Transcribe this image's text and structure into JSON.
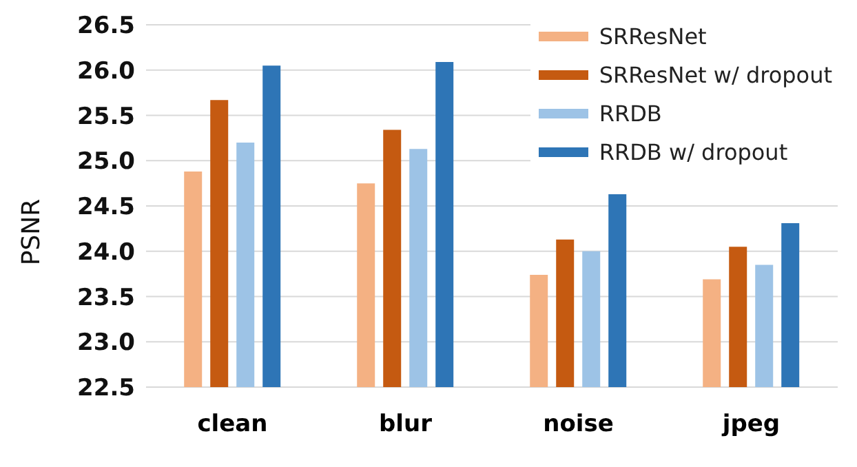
{
  "chart_data": {
    "type": "bar",
    "ylabel": "PSNR",
    "categories": [
      "clean",
      "blur",
      "noise",
      "jpeg"
    ],
    "series": [
      {
        "name": "SRResNet",
        "color": "#f4b183",
        "values": [
          24.88,
          24.75,
          23.74,
          23.69
        ]
      },
      {
        "name": "SRResNet w/ dropout",
        "color": "#c55a11",
        "values": [
          25.67,
          25.34,
          24.13,
          24.05
        ]
      },
      {
        "name": "RRDB",
        "color": "#9dc3e6",
        "values": [
          25.2,
          25.13,
          24.0,
          23.85
        ]
      },
      {
        "name": "RRDB w/ dropout",
        "color": "#2e75b6",
        "values": [
          26.05,
          26.09,
          24.63,
          24.31
        ]
      }
    ],
    "ylim": [
      22.5,
      26.5
    ],
    "yticks": [
      {
        "value": 22.5,
        "label": "22.5"
      },
      {
        "value": 23,
        "label": "23.0"
      },
      {
        "value": 23.5,
        "label": "23.5"
      },
      {
        "value": 24,
        "label": "24.0"
      },
      {
        "value": 24.5,
        "label": "24.5"
      },
      {
        "value": 25,
        "label": "25.0"
      },
      {
        "value": 25.5,
        "label": "25.5"
      },
      {
        "value": 26,
        "label": "26.0"
      },
      {
        "value": 26.5,
        "label": "26.5"
      }
    ],
    "grid": "y",
    "legend": "top right"
  }
}
